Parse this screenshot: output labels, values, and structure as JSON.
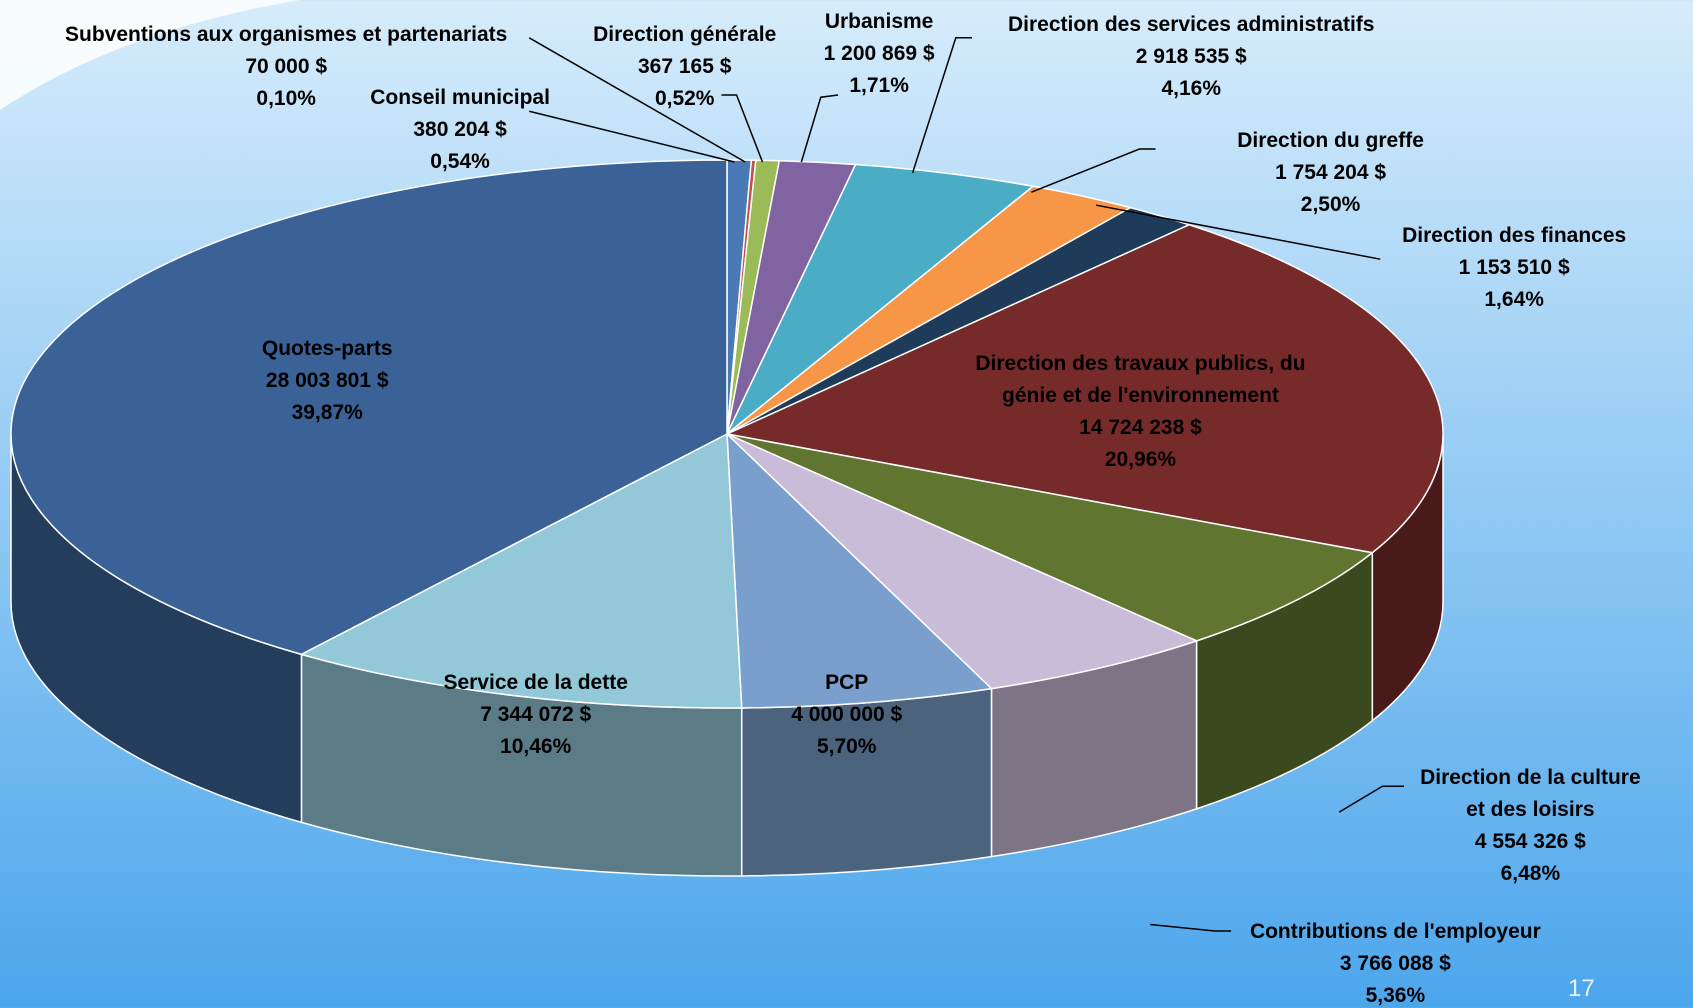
{
  "chart_data": {
    "type": "pie",
    "categories": [
      "Conseil municipal",
      "Subventions aux organismes et partenariats",
      "Direction générale",
      "Urbanisme",
      "Direction des services administratifs",
      "Direction du greffe",
      "Direction des finances",
      "Direction des travaux publics, du génie et de l'environnement",
      "Direction de la culture et des loisirs",
      "Contributions de l'employeur",
      "PCP",
      "Service de la dette",
      "Quotes-parts"
    ],
    "values": [
      380204,
      70000,
      367165,
      1200869,
      2918535,
      1754204,
      1153510,
      14724238,
      4554326,
      3766088,
      4000000,
      7344072,
      28003801
    ],
    "value_labels": [
      "380 204  $",
      "70 000  $",
      "367 165  $",
      "1 200 869  $",
      "2 918 535  $",
      "1 754 204  $",
      "1 153 510  $",
      "14 724 238  $",
      "4 554 326  $",
      "3 766 088  $",
      "4 000 000  $",
      "7 344 072  $",
      "28 003 801  $"
    ],
    "percent_labels": [
      "0,54%",
      "0,10%",
      "0,52%",
      "1,71%",
      "4,16%",
      "2,50%",
      "1,64%",
      "20,96%",
      "6,48%",
      "5,36%",
      "5,70%",
      "10,46%",
      "39,87%"
    ],
    "colors": [
      "#4a7ab5",
      "#c0504d",
      "#9bbb59",
      "#8064a2",
      "#4bacc6",
      "#f79646",
      "#1f3b5a",
      "#772a2a",
      "#5f7530",
      "#c9bcd8",
      "#7a9fcc",
      "#93c8d8",
      "#3b6296"
    ]
  },
  "page_number": "17"
}
